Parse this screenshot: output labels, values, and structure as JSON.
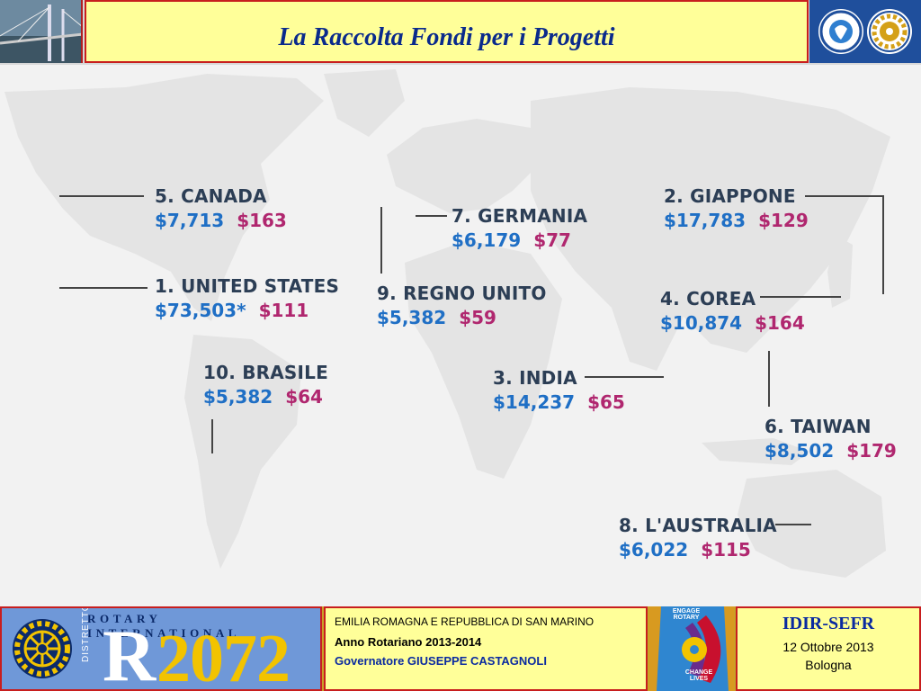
{
  "header": {
    "title": "La Raccolta Fondi per i Progetti"
  },
  "countries": [
    {
      "key": "canada",
      "name": "5. CANADA",
      "total": "$7,713",
      "per_member": "$163"
    },
    {
      "key": "us",
      "name": "1. UNITED STATES",
      "total": "$73,503*",
      "per_member": "$111"
    },
    {
      "key": "brazil",
      "name": "10. BRASILE",
      "total": "$5,382",
      "per_member": "$64"
    },
    {
      "key": "germany",
      "name": "7. GERMANIA",
      "total": "$6,179",
      "per_member": "$77"
    },
    {
      "key": "uk",
      "name": "9. REGNO UNITO",
      "total": "$5,382",
      "per_member": "$59"
    },
    {
      "key": "india",
      "name": "3. INDIA",
      "total": "$14,237",
      "per_member": "$65"
    },
    {
      "key": "japan",
      "name": "2. GIAPPONE",
      "total": "$17,783",
      "per_member": "$129"
    },
    {
      "key": "korea",
      "name": "4. COREA",
      "total": "$10,874",
      "per_member": "$164"
    },
    {
      "key": "taiwan",
      "name": "6. TAIWAN",
      "total": "$8,502",
      "per_member": "$179"
    },
    {
      "key": "australia",
      "name": "8. L'AUSTRALIA",
      "total": "$6,022",
      "per_member": "$115"
    }
  ],
  "colors": {
    "total": "#1f6fc5",
    "per_member": "#b0276f",
    "title": "#0a2a8c"
  },
  "footer": {
    "rotary_international": "ROTARY INTERNATIONAL",
    "distretto": "DISTRETTO",
    "district_letter": "R",
    "district_number": "2072",
    "region": "EMILIA ROMAGNA E REPUBBLICA DI SAN MARINO",
    "year": "Anno Rotariano 2013-2014",
    "governor": "Governatore  GIUSEPPE CASTAGNOLI",
    "theme_top": "ENGAGE ROTARY",
    "theme_bottom": "CHANGE LIVES",
    "event_title": "IDIR-SEFR",
    "event_date": "12 Ottobre 2013",
    "event_city": "Bologna"
  }
}
